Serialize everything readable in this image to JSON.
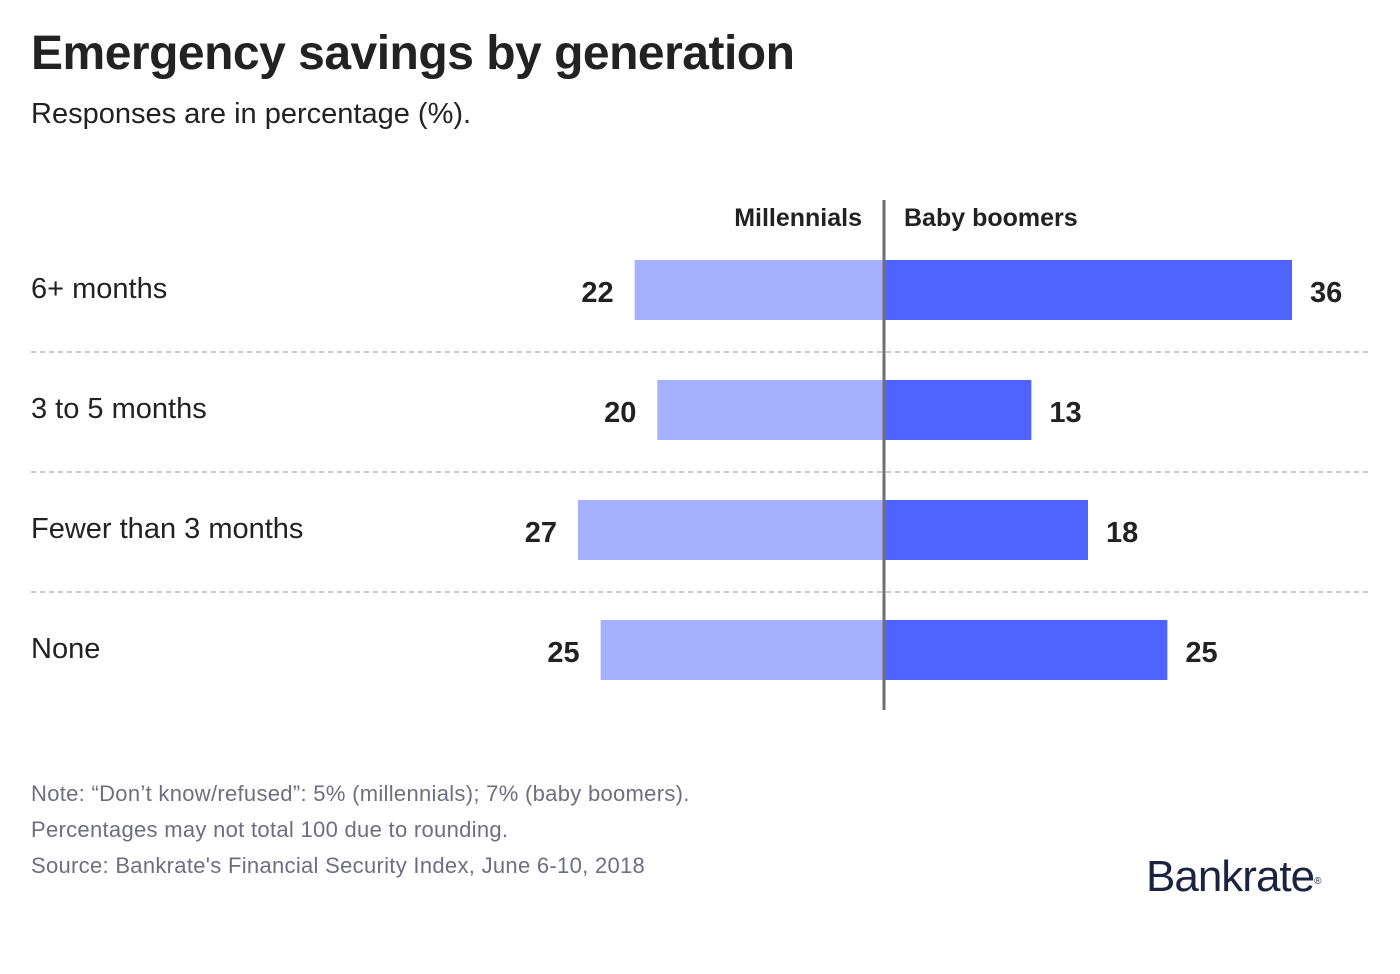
{
  "chart_data": {
    "type": "bar",
    "orientation": "horizontal-diverging",
    "title": "Emergency savings by generation",
    "subtitle": "Responses are in percentage (%).",
    "categories": [
      "6+ months",
      "3 to 5 months",
      "Fewer than 3 months",
      "None"
    ],
    "series": [
      {
        "name": "Millennials",
        "values": [
          22,
          20,
          27,
          25
        ],
        "color": "#a5b0fe",
        "side": "left"
      },
      {
        "name": "Baby boomers",
        "values": [
          36,
          13,
          18,
          25
        ],
        "color": "#4f64ff",
        "side": "right"
      }
    ],
    "xlim": [
      0,
      36
    ],
    "grid": false,
    "data_labels": true
  },
  "notes": [
    "Note: “Don’t know/refused”: 5% (millennials); 7% (baby boomers).",
    "Percentages may not total 100 due to rounding.",
    "Source: Bankrate's Financial Security Index, June 6-10, 2018"
  ],
  "logo": {
    "text": "Bankrate",
    "mark": "®"
  }
}
